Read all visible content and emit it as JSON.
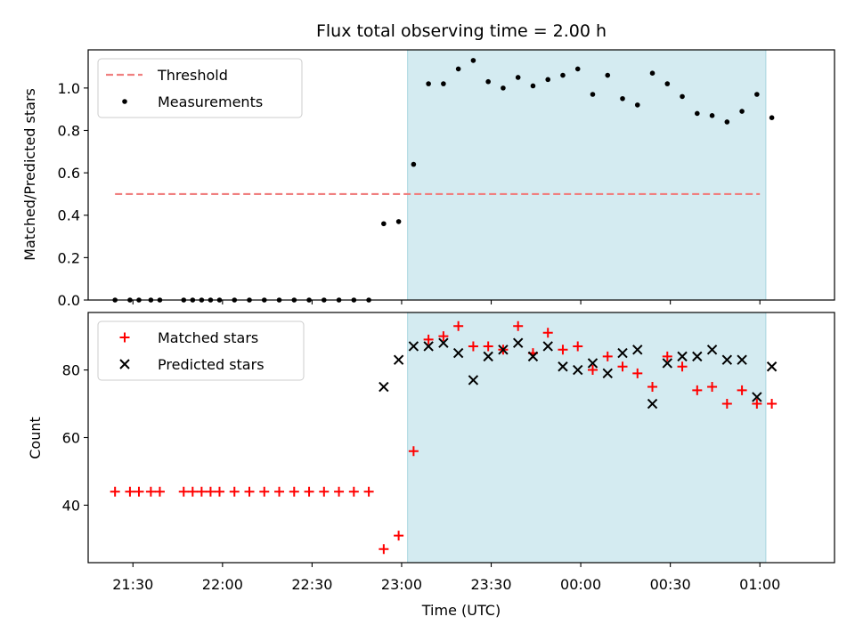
{
  "chart_data": [
    {
      "type": "scatter",
      "title": "Flux total observing time = 2.00 h",
      "xlabel": "",
      "ylabel": "Matched/Predicted stars",
      "xlim": [
        "21:15",
        "01:25"
      ],
      "ylim": [
        0,
        1.18
      ],
      "yticks": [
        "0.0",
        "0.2",
        "0.4",
        "0.6",
        "0.8",
        "1.0"
      ],
      "shaded_region": {
        "from": "23:02",
        "to": "01:02",
        "color": "#d4ebf1"
      },
      "legend": {
        "placement": "top-left",
        "entries": [
          "Threshold",
          "Measurements"
        ]
      },
      "threshold": {
        "name": "Threshold",
        "value": 0.5,
        "from": "21:24",
        "to": "01:00",
        "color": "#f08080"
      },
      "series": [
        {
          "name": "Measurements",
          "color": "#000000",
          "marker": "dot",
          "points": [
            [
              "21:24",
              0
            ],
            [
              "21:29",
              0
            ],
            [
              "21:32",
              0
            ],
            [
              "21:36",
              0
            ],
            [
              "21:39",
              0
            ],
            [
              "21:47",
              0
            ],
            [
              "21:50",
              0
            ],
            [
              "21:53",
              0
            ],
            [
              "21:56",
              0
            ],
            [
              "21:59",
              0
            ],
            [
              "22:04",
              0
            ],
            [
              "22:09",
              0
            ],
            [
              "22:14",
              0
            ],
            [
              "22:19",
              0
            ],
            [
              "22:24",
              0
            ],
            [
              "22:29",
              0
            ],
            [
              "22:34",
              0
            ],
            [
              "22:39",
              0
            ],
            [
              "22:44",
              0
            ],
            [
              "22:49",
              0
            ],
            [
              "22:54",
              0.36
            ],
            [
              "22:59",
              0.37
            ],
            [
              "23:04",
              0.64
            ],
            [
              "23:09",
              1.02
            ],
            [
              "23:14",
              1.02
            ],
            [
              "23:19",
              1.09
            ],
            [
              "23:24",
              1.13
            ],
            [
              "23:29",
              1.03
            ],
            [
              "23:34",
              1.0
            ],
            [
              "23:39",
              1.05
            ],
            [
              "23:44",
              1.01
            ],
            [
              "23:49",
              1.04
            ],
            [
              "23:54",
              1.06
            ],
            [
              "23:59",
              1.09
            ],
            [
              "00:04",
              0.97
            ],
            [
              "00:09",
              1.06
            ],
            [
              "00:14",
              0.95
            ],
            [
              "00:19",
              0.92
            ],
            [
              "00:24",
              1.07
            ],
            [
              "00:29",
              1.02
            ],
            [
              "00:34",
              0.96
            ],
            [
              "00:39",
              0.88
            ],
            [
              "00:44",
              0.87
            ],
            [
              "00:49",
              0.84
            ],
            [
              "00:54",
              0.89
            ],
            [
              "00:59",
              0.97
            ],
            [
              "01:04",
              0.86
            ]
          ]
        }
      ]
    },
    {
      "type": "scatter",
      "title": "",
      "xlabel": "Time (UTC)",
      "ylabel": "Count",
      "xlim": [
        "21:15",
        "01:25"
      ],
      "ylim": [
        23,
        97
      ],
      "xticks": [
        "21:30",
        "22:00",
        "22:30",
        "23:00",
        "23:30",
        "00:00",
        "00:30",
        "01:00"
      ],
      "yticks": [
        "40",
        "60",
        "80"
      ],
      "shaded_region": {
        "from": "23:02",
        "to": "01:02",
        "color": "#d4ebf1"
      },
      "legend": {
        "placement": "top-left",
        "entries": [
          "Matched stars",
          "Predicted stars"
        ]
      },
      "series": [
        {
          "name": "Matched stars",
          "color": "#ff0000",
          "marker": "plus",
          "points": [
            [
              "21:24",
              44
            ],
            [
              "21:29",
              44
            ],
            [
              "21:32",
              44
            ],
            [
              "21:36",
              44
            ],
            [
              "21:39",
              44
            ],
            [
              "21:47",
              44
            ],
            [
              "21:50",
              44
            ],
            [
              "21:53",
              44
            ],
            [
              "21:56",
              44
            ],
            [
              "21:59",
              44
            ],
            [
              "22:04",
              44
            ],
            [
              "22:09",
              44
            ],
            [
              "22:14",
              44
            ],
            [
              "22:19",
              44
            ],
            [
              "22:24",
              44
            ],
            [
              "22:29",
              44
            ],
            [
              "22:34",
              44
            ],
            [
              "22:39",
              44
            ],
            [
              "22:44",
              44
            ],
            [
              "22:49",
              44
            ],
            [
              "22:54",
              27
            ],
            [
              "22:59",
              31
            ],
            [
              "23:04",
              56
            ],
            [
              "23:09",
              89
            ],
            [
              "23:14",
              90
            ],
            [
              "23:19",
              93
            ],
            [
              "23:24",
              87
            ],
            [
              "23:29",
              87
            ],
            [
              "23:34",
              86
            ],
            [
              "23:39",
              93
            ],
            [
              "23:44",
              85
            ],
            [
              "23:49",
              91
            ],
            [
              "23:54",
              86
            ],
            [
              "23:59",
              87
            ],
            [
              "00:04",
              80
            ],
            [
              "00:09",
              84
            ],
            [
              "00:14",
              81
            ],
            [
              "00:19",
              79
            ],
            [
              "00:24",
              75
            ],
            [
              "00:29",
              84
            ],
            [
              "00:34",
              81
            ],
            [
              "00:39",
              74
            ],
            [
              "00:44",
              75
            ],
            [
              "00:49",
              70
            ],
            [
              "00:54",
              74
            ],
            [
              "00:59",
              70
            ],
            [
              "01:04",
              70
            ]
          ]
        },
        {
          "name": "Predicted stars",
          "color": "#000000",
          "marker": "x",
          "points": [
            [
              "22:54",
              75
            ],
            [
              "22:59",
              83
            ],
            [
              "23:04",
              87
            ],
            [
              "23:09",
              87
            ],
            [
              "23:14",
              88
            ],
            [
              "23:19",
              85
            ],
            [
              "23:24",
              77
            ],
            [
              "23:29",
              84
            ],
            [
              "23:34",
              86
            ],
            [
              "23:39",
              88
            ],
            [
              "23:44",
              84
            ],
            [
              "23:49",
              87
            ],
            [
              "23:54",
              81
            ],
            [
              "23:59",
              80
            ],
            [
              "00:04",
              82
            ],
            [
              "00:09",
              79
            ],
            [
              "00:14",
              85
            ],
            [
              "00:19",
              86
            ],
            [
              "00:24",
              70
            ],
            [
              "00:29",
              82
            ],
            [
              "00:34",
              84
            ],
            [
              "00:39",
              84
            ],
            [
              "00:44",
              86
            ],
            [
              "00:49",
              83
            ],
            [
              "00:54",
              83
            ],
            [
              "00:59",
              72
            ],
            [
              "01:04",
              81
            ]
          ]
        }
      ]
    }
  ]
}
